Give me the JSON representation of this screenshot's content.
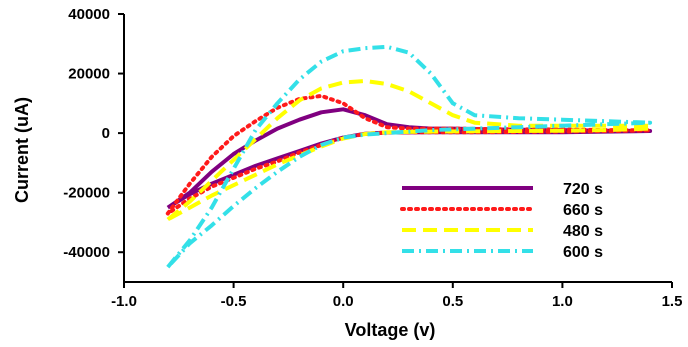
{
  "chart_data": {
    "type": "line",
    "title": "",
    "xlabel": "Voltage (v)",
    "ylabel": "Current (uA)",
    "xlim": [
      -1.0,
      1.5
    ],
    "ylim": [
      -50000,
      40000
    ],
    "x_ticks": [
      -1.0,
      -0.5,
      0.0,
      0.5,
      1.0,
      1.5
    ],
    "x_tick_labels": [
      "-1.0",
      "-0.5",
      "0.0",
      "0.5",
      "1.0",
      "1.5"
    ],
    "y_ticks": [
      -40000,
      -20000,
      0,
      20000,
      40000
    ],
    "y_tick_labels": [
      "-40000",
      "-20000",
      "0",
      "20000",
      "40000"
    ],
    "grid": false,
    "legend_position": "bottom-right",
    "series": [
      {
        "name": "720 s",
        "color": "#800080",
        "style": "solid",
        "x": [
          -0.8,
          -0.7,
          -0.6,
          -0.5,
          -0.4,
          -0.3,
          -0.2,
          -0.1,
          0.0,
          0.1,
          0.2,
          0.3,
          0.4,
          0.5,
          0.7,
          1.0,
          1.2,
          1.4,
          1.4,
          1.2,
          1.0,
          0.8,
          0.6,
          0.4,
          0.2,
          0.1,
          0.0,
          -0.1,
          -0.2,
          -0.3,
          -0.4,
          -0.5,
          -0.6,
          -0.7,
          -0.8
        ],
        "y": [
          -25000,
          -20000,
          -13000,
          -7000,
          -2500,
          1500,
          4500,
          7000,
          8000,
          6000,
          3000,
          2000,
          1500,
          1500,
          1200,
          1000,
          800,
          700,
          700,
          500,
          300,
          300,
          300,
          300,
          200,
          -200,
          -1500,
          -3500,
          -6000,
          -8500,
          -11000,
          -14000,
          -17000,
          -20500,
          -25000
        ]
      },
      {
        "name": "660 s",
        "color": "#ff1a1a",
        "style": "dotted",
        "x": [
          -0.8,
          -0.7,
          -0.6,
          -0.5,
          -0.4,
          -0.3,
          -0.2,
          -0.1,
          0.0,
          0.1,
          0.2,
          0.3,
          0.4,
          0.5,
          0.7,
          1.0,
          1.2,
          1.4,
          1.4,
          1.2,
          1.0,
          0.8,
          0.6,
          0.4,
          0.2,
          0.1,
          0.0,
          -0.1,
          -0.2,
          -0.3,
          -0.4,
          -0.5,
          -0.6,
          -0.7,
          -0.8
        ],
        "y": [
          -27000,
          -17000,
          -8000,
          -1000,
          4000,
          8500,
          11500,
          12500,
          10000,
          5000,
          2000,
          1500,
          1500,
          1500,
          1300,
          1200,
          1000,
          900,
          900,
          700,
          500,
          400,
          300,
          300,
          200,
          -300,
          -1500,
          -4000,
          -6500,
          -9500,
          -12000,
          -15000,
          -18000,
          -22000,
          -27000
        ]
      },
      {
        "name": "480 s",
        "color": "#ffff00",
        "style": "dashed",
        "x": [
          -0.8,
          -0.7,
          -0.6,
          -0.5,
          -0.4,
          -0.3,
          -0.2,
          -0.1,
          0.0,
          0.1,
          0.2,
          0.3,
          0.4,
          0.5,
          0.6,
          0.8,
          1.0,
          1.2,
          1.4,
          1.4,
          1.2,
          1.0,
          0.8,
          0.6,
          0.4,
          0.2,
          0.1,
          0.0,
          -0.1,
          -0.2,
          -0.3,
          -0.4,
          -0.5,
          -0.6,
          -0.7,
          -0.8
        ],
        "y": [
          -29000,
          -23000,
          -16000,
          -9000,
          -2000,
          5000,
          11000,
          15000,
          17000,
          17500,
          16500,
          14000,
          10000,
          6000,
          3500,
          2500,
          2500,
          2500,
          2500,
          1500,
          1000,
          800,
          700,
          600,
          500,
          300,
          -300,
          -1800,
          -4500,
          -7500,
          -10500,
          -14000,
          -17500,
          -21000,
          -25000,
          -29000
        ]
      },
      {
        "name": "600 s",
        "color": "#33e0e8",
        "style": "dashdot",
        "x": [
          -0.8,
          -0.7,
          -0.6,
          -0.5,
          -0.4,
          -0.3,
          -0.2,
          -0.1,
          0.0,
          0.1,
          0.2,
          0.3,
          0.4,
          0.5,
          0.6,
          0.8,
          1.0,
          1.2,
          1.4,
          1.4,
          1.2,
          1.0,
          0.8,
          0.6,
          0.4,
          0.3,
          0.2,
          0.1,
          0.0,
          -0.1,
          -0.2,
          -0.3,
          -0.4,
          -0.5,
          -0.6,
          -0.7,
          -0.8
        ],
        "y": [
          -45000,
          -36000,
          -25000,
          -12000,
          1000,
          10000,
          18000,
          24000,
          27500,
          28500,
          29000,
          27000,
          20000,
          10000,
          6000,
          5000,
          4500,
          4000,
          3500,
          3500,
          3000,
          2500,
          2000,
          1500,
          1000,
          500,
          0,
          -500,
          -1500,
          -4000,
          -8000,
          -13000,
          -18500,
          -24500,
          -31000,
          -37000,
          -45000
        ]
      }
    ]
  }
}
